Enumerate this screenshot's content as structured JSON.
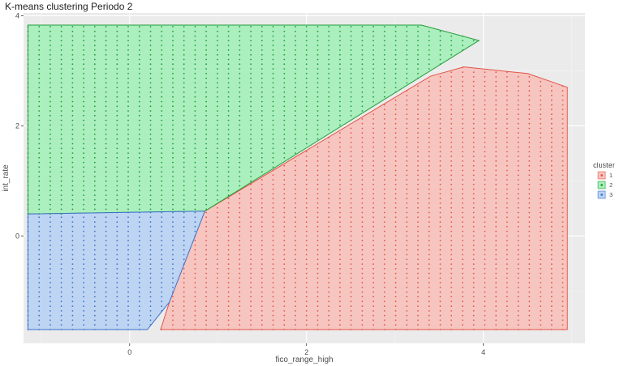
{
  "chart_data": {
    "type": "scatter",
    "title": "K-means clustering Periodo 2",
    "xlabel": "fico_range_high",
    "ylabel": "int_rate",
    "xlim": [
      -1.2,
      5.15
    ],
    "ylim": [
      -1.95,
      4.05
    ],
    "xticks": [
      "0",
      "2",
      "4"
    ],
    "yticks": [
      "0",
      "2",
      "4"
    ],
    "xtick_values": [
      0,
      2,
      4
    ],
    "ytick_values": [
      0,
      2,
      4
    ],
    "grid": true,
    "legend": {
      "title": "cluster",
      "position": "right",
      "entries": [
        {
          "label": "1",
          "color": "#e15549",
          "fill": "#f8c3bd"
        },
        {
          "label": "2",
          "color": "#239b3a",
          "fill": "#a6efba"
        },
        {
          "label": "3",
          "color": "#3a72c8",
          "fill": "#bcd3f3"
        }
      ]
    },
    "column_spacing": 0.126,
    "series": [
      {
        "name": "1",
        "color": "#e15549",
        "hull": [
          [
            0.35,
            -1.7
          ],
          [
            4.95,
            -1.7
          ],
          [
            4.95,
            2.7
          ],
          [
            4.5,
            2.95
          ],
          [
            3.78,
            3.07
          ],
          [
            3.4,
            2.9
          ],
          [
            0.85,
            0.45
          ],
          [
            0.55,
            -0.7
          ]
        ],
        "x_range": [
          0.35,
          4.95
        ]
      },
      {
        "name": "2",
        "color": "#239b3a",
        "hull": [
          [
            -1.15,
            3.83
          ],
          [
            3.3,
            3.83
          ],
          [
            3.95,
            3.55
          ],
          [
            0.85,
            0.45
          ],
          [
            -1.15,
            0.4
          ]
        ],
        "x_range": [
          -1.15,
          3.95
        ]
      },
      {
        "name": "3",
        "color": "#3a72c8",
        "hull": [
          [
            -1.15,
            -1.7
          ],
          [
            0.2,
            -1.7
          ],
          [
            0.45,
            -1.2
          ],
          [
            0.85,
            0.45
          ],
          [
            -1.15,
            0.4
          ]
        ],
        "x_range": [
          -1.15,
          0.85
        ]
      }
    ]
  }
}
